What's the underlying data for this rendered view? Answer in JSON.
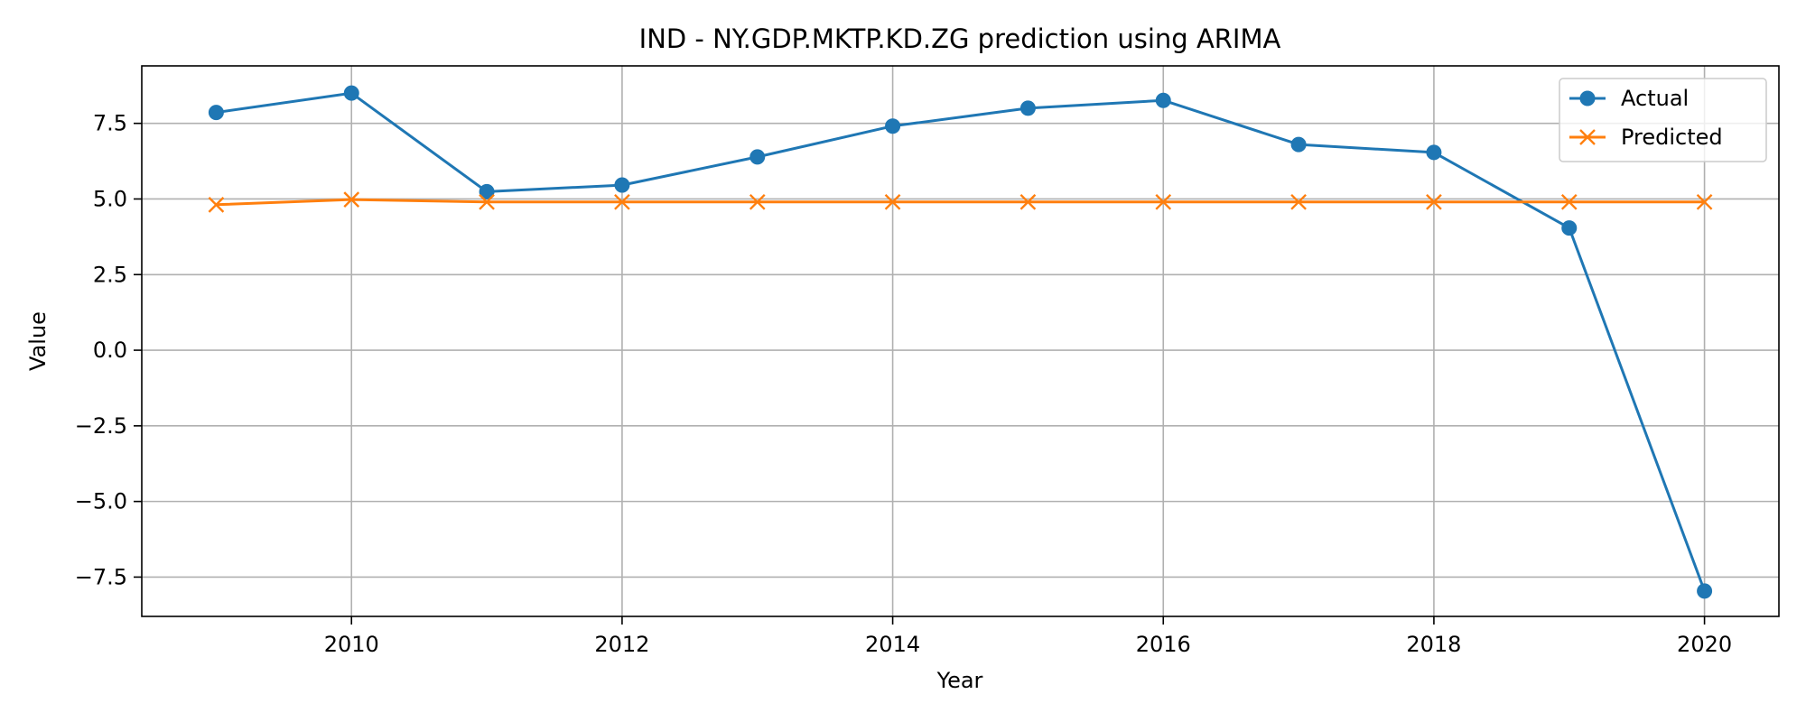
{
  "chart_data": {
    "type": "line",
    "title": "IND - NY.GDP.MKTP.KD.ZG prediction using ARIMA",
    "xlabel": "Year",
    "ylabel": "Value",
    "x": [
      2009,
      2010,
      2011,
      2012,
      2013,
      2014,
      2015,
      2016,
      2017,
      2018,
      2019,
      2020
    ],
    "xlim": [
      2008.45,
      2020.55
    ],
    "ylim": [
      -8.8,
      9.4
    ],
    "xticks": [
      2010,
      2012,
      2014,
      2016,
      2018,
      2020
    ],
    "yticks": [
      7.5,
      5.0,
      2.5,
      0.0,
      -2.5,
      -5.0,
      -7.5
    ],
    "ytick_labels": [
      "7.5",
      "5.0",
      "2.5",
      "0.0",
      "−2.5",
      "−5.0",
      "−7.5"
    ],
    "grid": true,
    "legend_position": "top-right",
    "series": [
      {
        "name": "Actual",
        "color": "#1f77b4",
        "marker": "circle",
        "values": [
          7.86,
          8.5,
          5.24,
          5.46,
          6.39,
          7.41,
          8.0,
          8.26,
          6.8,
          6.54,
          4.04,
          -7.96
        ]
      },
      {
        "name": "Predicted",
        "color": "#ff7f0e",
        "marker": "x",
        "values": [
          4.81,
          4.98,
          4.9,
          4.9,
          4.9,
          4.9,
          4.9,
          4.9,
          4.9,
          4.9,
          4.9,
          4.9
        ]
      }
    ]
  }
}
